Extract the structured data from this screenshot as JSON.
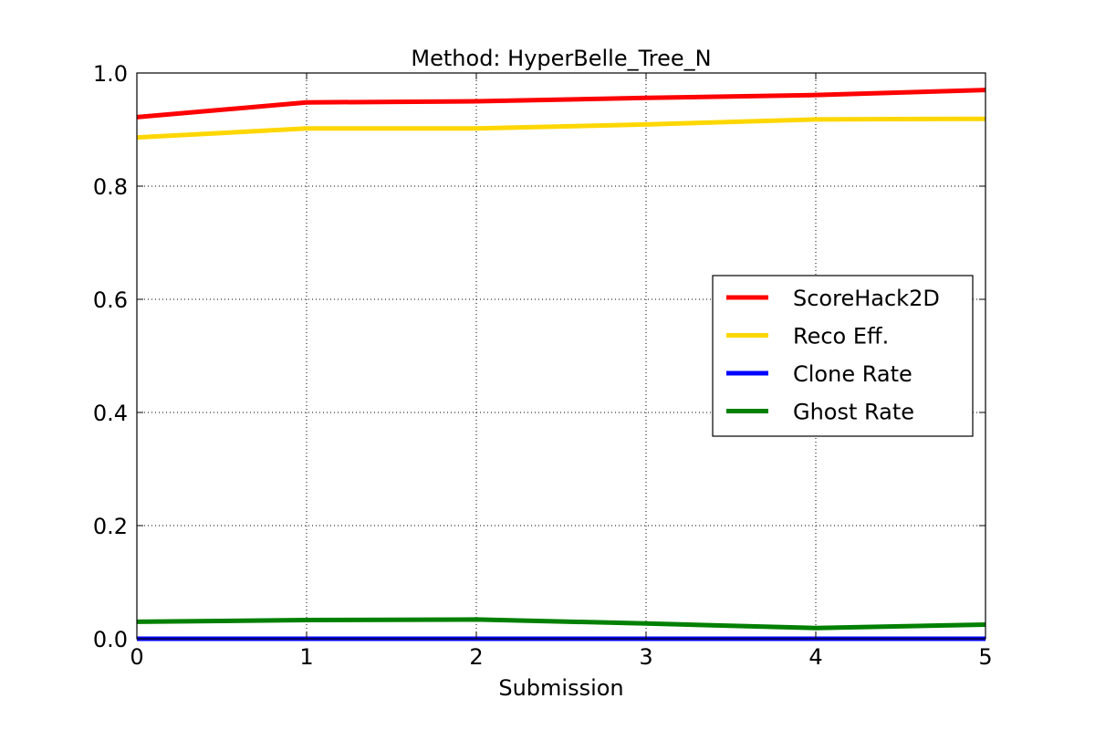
{
  "chart_data": {
    "type": "line",
    "title": "Method: HyperBelle_Tree_N",
    "xlabel": "Submission",
    "ylabel": "",
    "x": [
      0,
      1,
      2,
      3,
      4,
      5
    ],
    "xlim": [
      0,
      5
    ],
    "ylim": [
      0.0,
      1.0
    ],
    "xticks": [
      "0",
      "1",
      "2",
      "3",
      "4",
      "5"
    ],
    "yticks": [
      "0.0",
      "0.2",
      "0.4",
      "0.6",
      "0.8",
      "1.0"
    ],
    "grid": true,
    "legend_position": "center-right",
    "series": [
      {
        "name": "ScoreHack2D",
        "color": "#ff0000",
        "values": [
          0.922,
          0.948,
          0.95,
          0.956,
          0.961,
          0.97
        ]
      },
      {
        "name": "Reco Eff.",
        "color": "#ffd700",
        "values": [
          0.886,
          0.902,
          0.902,
          0.909,
          0.918,
          0.919
        ]
      },
      {
        "name": "Clone Rate",
        "color": "#0000ff",
        "values": [
          0.0,
          0.0,
          0.0,
          0.0,
          0.0,
          0.0
        ]
      },
      {
        "name": "Ghost Rate",
        "color": "#008000",
        "values": [
          0.03,
          0.033,
          0.034,
          0.027,
          0.019,
          0.025
        ]
      }
    ]
  }
}
